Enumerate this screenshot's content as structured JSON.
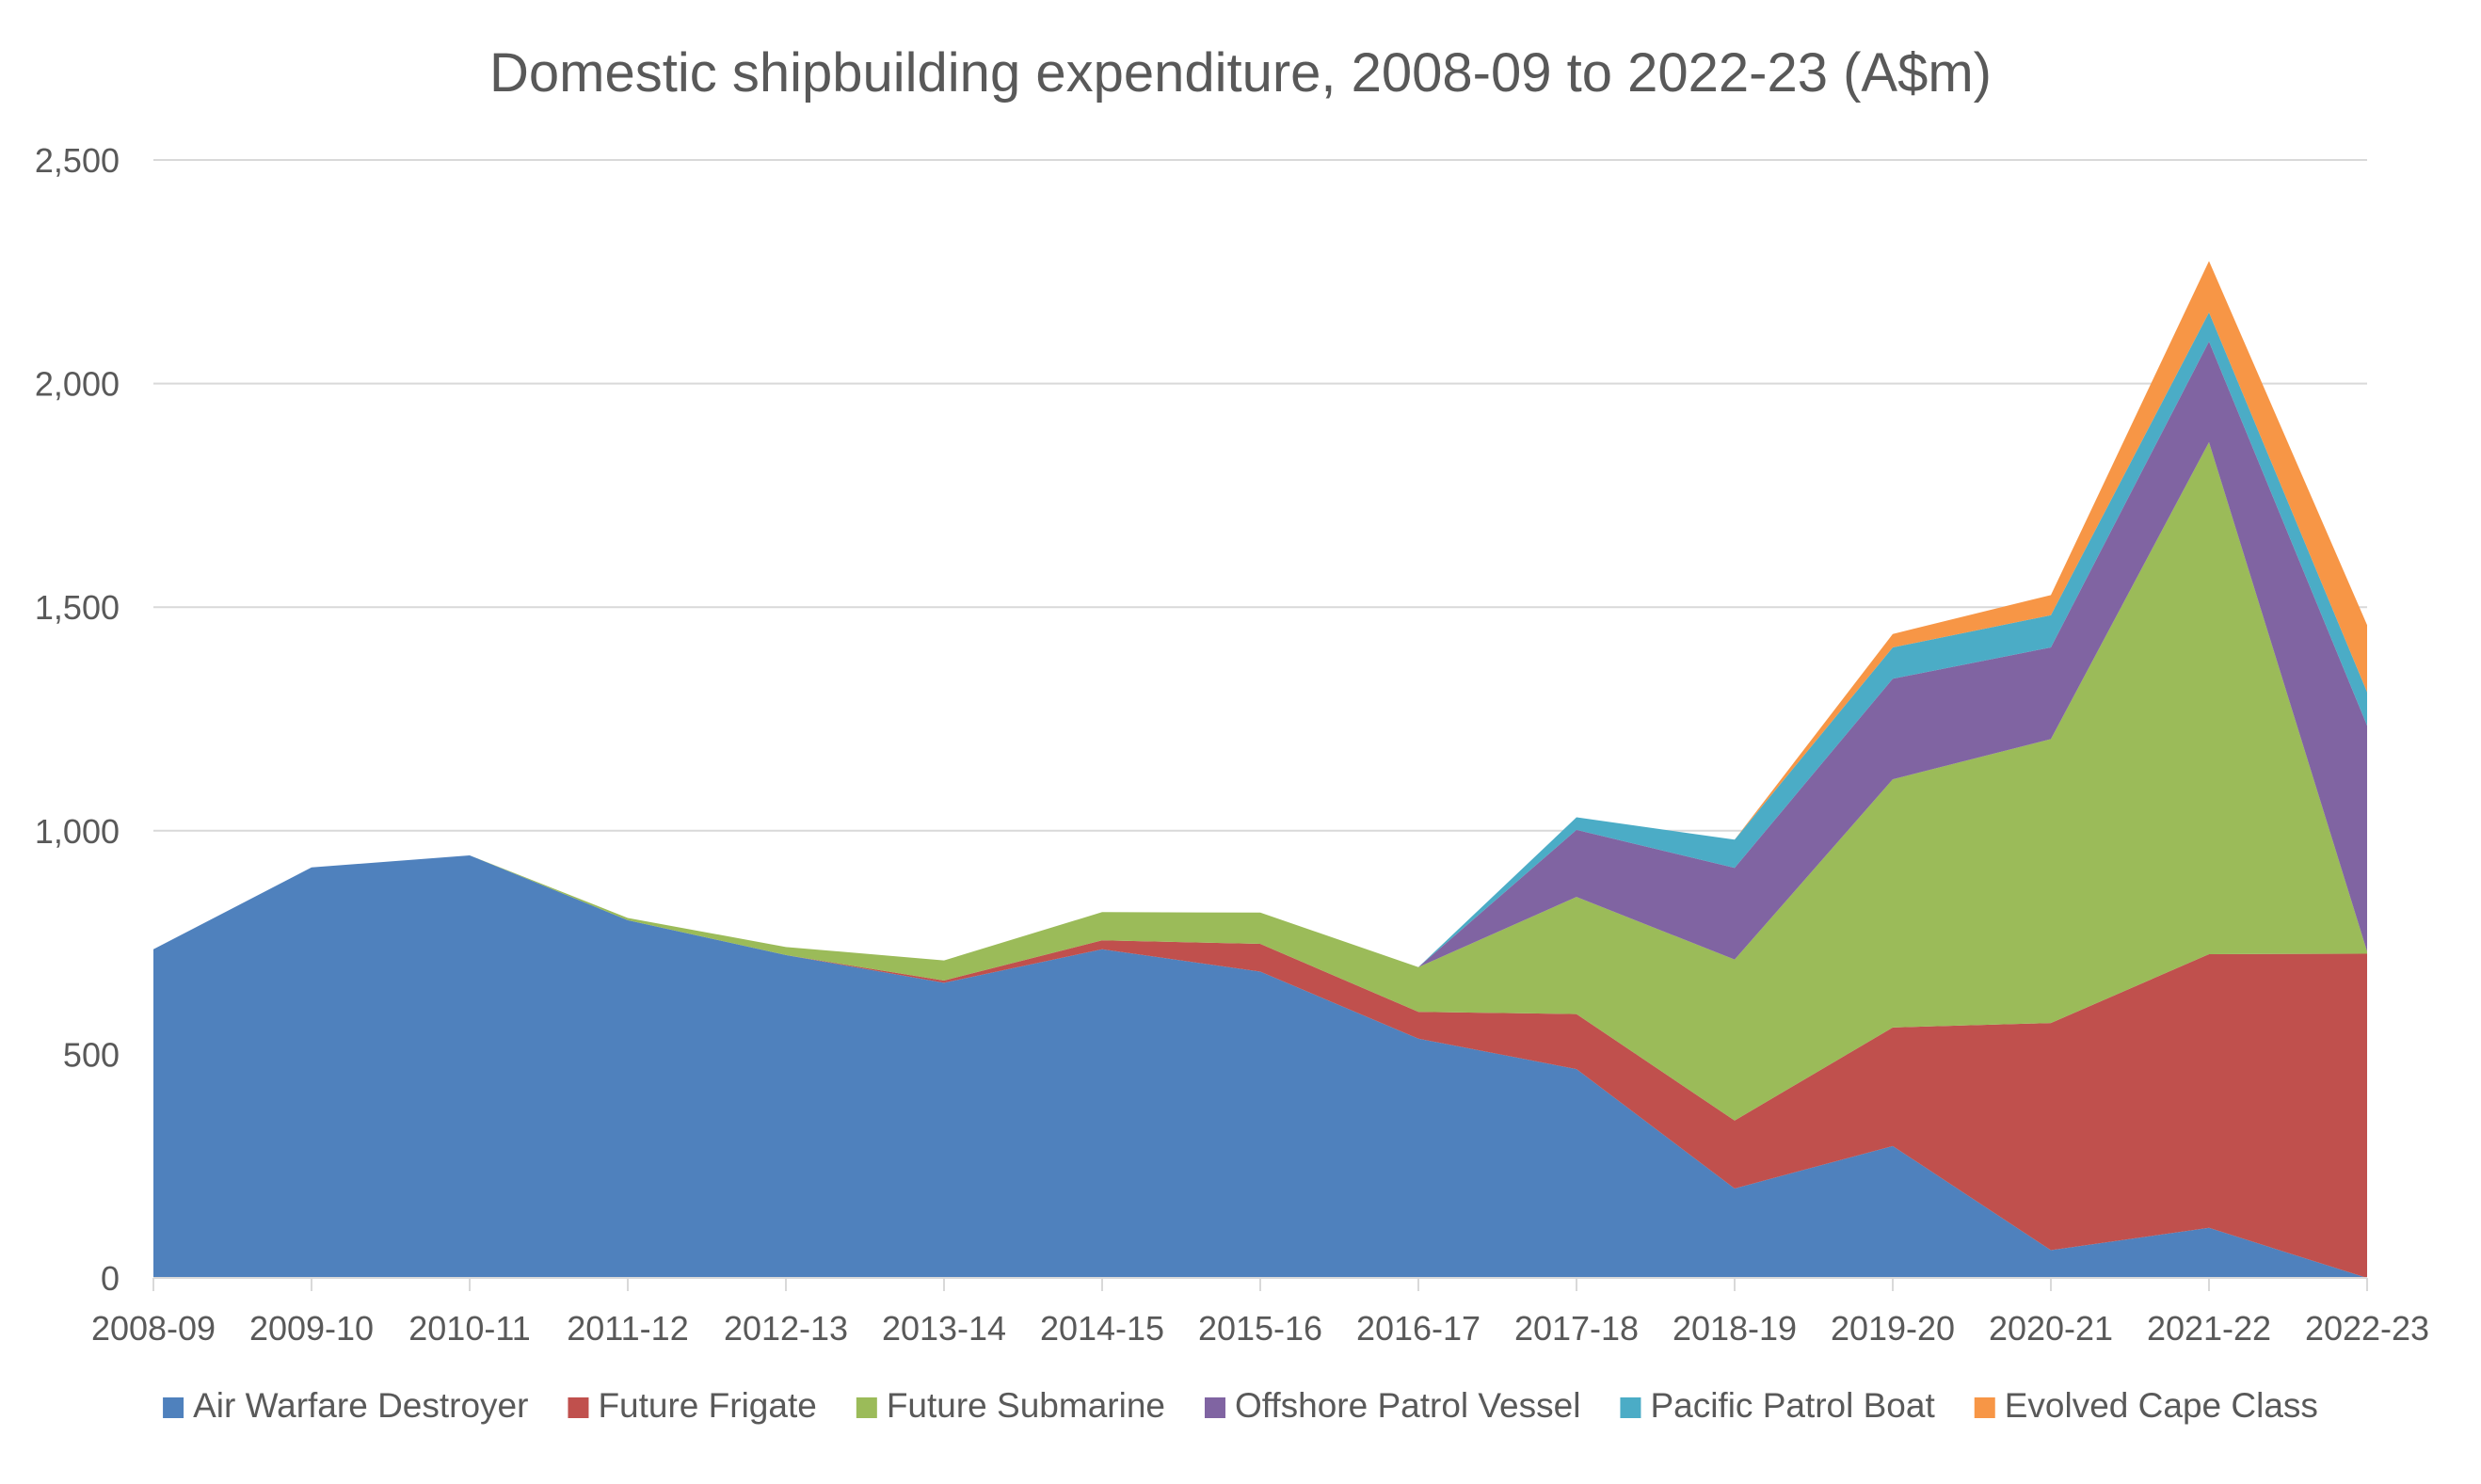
{
  "chart_data": {
    "type": "area",
    "stacked": true,
    "title": "Domestic shipbuilding expenditure, 2008-09 to 2022-23 (A$m)",
    "xlabel": "",
    "ylabel": "",
    "categories": [
      "2008-09",
      "2009-10",
      "2010-11",
      "2011-12",
      "2012-13",
      "2013-14",
      "2014-15",
      "2015-16",
      "2016-17",
      "2017-18",
      "2018-19",
      "2019-20",
      "2020-21",
      "2021-22",
      "2022-23"
    ],
    "ylim": [
      0,
      2500
    ],
    "yticks": [
      0,
      500,
      1000,
      1500,
      2000,
      2500
    ],
    "ytick_labels": [
      "0",
      "500",
      "1,000",
      "1,500",
      "2,000",
      "2,500"
    ],
    "grid": true,
    "legend_position": "bottom",
    "series": [
      {
        "name": "Air Warfare Destroyer",
        "color": "#4f81bd",
        "values": [
          735,
          918,
          945,
          800,
          722,
          660,
          735,
          685,
          535,
          467,
          200,
          295,
          62,
          112,
          0
        ]
      },
      {
        "name": "Future Frigate",
        "color": "#c0504d",
        "values": [
          0,
          0,
          0,
          0,
          0,
          5,
          20,
          62,
          60,
          123,
          152,
          265,
          508,
          612,
          725
        ]
      },
      {
        "name": "Future Submarine",
        "color": "#9bbb59",
        "values": [
          0,
          0,
          0,
          5,
          18,
          45,
          63,
          70,
          100,
          262,
          360,
          555,
          635,
          1145,
          5
        ]
      },
      {
        "name": "Offshore Patrol Vessel",
        "color": "#8064a2",
        "values": [
          0,
          0,
          0,
          0,
          0,
          0,
          0,
          0,
          0,
          150,
          205,
          225,
          205,
          225,
          505
        ]
      },
      {
        "name": "Pacific Patrol Boat",
        "color": "#4bacc6",
        "values": [
          0,
          0,
          0,
          0,
          0,
          0,
          0,
          0,
          0,
          28,
          63,
          70,
          72,
          65,
          75
        ]
      },
      {
        "name": "Evolved Cape Class",
        "color": "#f79646",
        "values": [
          0,
          0,
          0,
          0,
          0,
          0,
          0,
          0,
          0,
          0,
          0,
          30,
          45,
          115,
          150
        ]
      }
    ]
  }
}
